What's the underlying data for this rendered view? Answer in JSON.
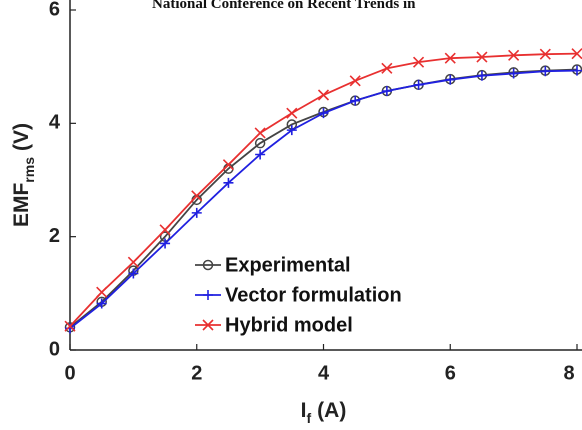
{
  "header": "National Conference on Recent Trends in",
  "chart_data": {
    "type": "line",
    "xlabel": [
      "I",
      "f",
      "(A)"
    ],
    "ylabel": [
      "EMF",
      "rms",
      "(V)"
    ],
    "x": [
      0,
      0.5,
      1,
      1.5,
      2,
      2.5,
      3,
      3.5,
      4,
      4.5,
      5,
      5.5,
      6,
      6.5,
      7,
      7.5,
      8
    ],
    "series": [
      {
        "name": "Experimental",
        "color": "#444444",
        "marker": "o",
        "values": [
          0.4,
          0.85,
          1.4,
          2.0,
          2.65,
          3.2,
          3.65,
          3.98,
          4.2,
          4.4,
          4.57,
          4.68,
          4.78,
          4.85,
          4.9,
          4.93,
          4.95
        ]
      },
      {
        "name": "Vector formulation",
        "color": "#2020e0",
        "marker": "+",
        "values": [
          0.38,
          0.82,
          1.35,
          1.88,
          2.42,
          2.95,
          3.45,
          3.88,
          4.18,
          4.4,
          4.57,
          4.68,
          4.77,
          4.84,
          4.88,
          4.92,
          4.93
        ]
      },
      {
        "name": "Hybrid model",
        "color": "#e83030",
        "marker": "x",
        "values": [
          0.42,
          1.02,
          1.55,
          2.12,
          2.72,
          3.27,
          3.83,
          4.18,
          4.5,
          4.75,
          4.97,
          5.08,
          5.15,
          5.17,
          5.2,
          5.22,
          5.23
        ]
      }
    ],
    "xlim": [
      0,
      8
    ],
    "xticks": [
      0,
      2,
      4,
      6,
      8
    ],
    "ylim": [
      0,
      6
    ],
    "yticks": [
      0,
      2,
      4,
      6
    ],
    "legend": "lower center"
  }
}
